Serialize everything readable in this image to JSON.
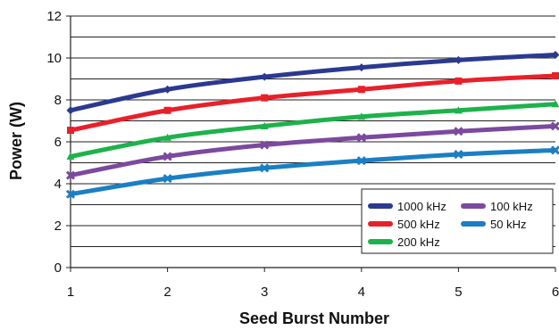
{
  "chart_data": {
    "type": "line",
    "xlabel": "Seed Burst Number",
    "ylabel": "Power (W)",
    "x": [
      1,
      2,
      3,
      4,
      5,
      6
    ],
    "xlim": [
      1,
      6
    ],
    "ylim": [
      0,
      12
    ],
    "x_ticks": [
      "1",
      "2",
      "3",
      "4",
      "5",
      "6"
    ],
    "y_ticks": [
      "0",
      "2",
      "4",
      "6",
      "8",
      "10",
      "12"
    ],
    "y_tick_values": [
      0,
      2,
      4,
      6,
      8,
      10,
      12
    ],
    "grid_y_values": [
      0,
      1,
      2,
      3,
      4,
      5,
      6,
      7,
      8,
      9,
      10,
      11,
      12
    ],
    "grid": true,
    "legend_position": "bottom-right",
    "series": [
      {
        "name": "1000 kHz",
        "color": "#2b3990",
        "marker": "diamond",
        "values": [
          7.5,
          8.5,
          9.1,
          9.55,
          9.9,
          10.15
        ]
      },
      {
        "name": "500 kHz",
        "color": "#e8202a",
        "marker": "square",
        "values": [
          6.55,
          7.5,
          8.1,
          8.5,
          8.9,
          9.15
        ]
      },
      {
        "name": "200 kHz",
        "color": "#1db24b",
        "marker": "triangle",
        "values": [
          5.3,
          6.2,
          6.75,
          7.2,
          7.5,
          7.8
        ]
      },
      {
        "name": "100 kHz",
        "color": "#7b4a9e",
        "marker": "x",
        "values": [
          4.4,
          5.3,
          5.85,
          6.2,
          6.5,
          6.75
        ]
      },
      {
        "name": "50 kHz",
        "color": "#1a7fc4",
        "marker": "x",
        "values": [
          3.5,
          4.25,
          4.75,
          5.1,
          5.4,
          5.6
        ]
      }
    ],
    "legend_order": [
      0,
      3,
      1,
      4,
      2
    ]
  }
}
